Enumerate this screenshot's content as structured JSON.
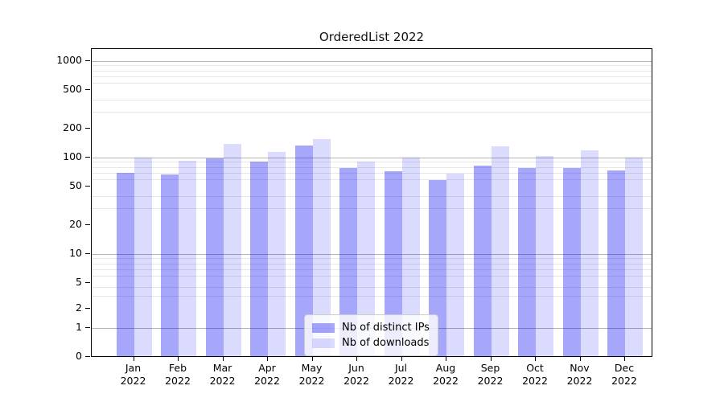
{
  "figure": {
    "title": "OrderedList 2022"
  },
  "chart_data": {
    "type": "bar",
    "title": "OrderedList 2022",
    "categories": [
      "Jan",
      "Feb",
      "Mar",
      "Apr",
      "May",
      "Jun",
      "Jul",
      "Aug",
      "Sep",
      "Oct",
      "Nov",
      "Dec"
    ],
    "x_year_suffix": "2022",
    "series": [
      {
        "name": "Nb of distinct IPs",
        "color": "#0000f059",
        "values": [
          70,
          67,
          98,
          91,
          133,
          78,
          72,
          58,
          82,
          78,
          78,
          74
        ]
      },
      {
        "name": "Nb of downloads",
        "color": "#0000f024",
        "values": [
          100,
          93,
          139,
          114,
          155,
          90,
          100,
          68,
          131,
          104,
          119,
          100
        ]
      }
    ],
    "yscale": "symlog",
    "ylim": [
      0,
      1300
    ],
    "yticks": [
      0,
      1,
      2,
      5,
      10,
      20,
      50,
      100,
      200,
      500,
      1000
    ],
    "minor_gridline_values": [
      3,
      4,
      6,
      7,
      8,
      9,
      30,
      40,
      60,
      70,
      80,
      90,
      300,
      400,
      600,
      700,
      800,
      900
    ],
    "major_gridline_values": [
      1,
      10,
      100,
      1000
    ],
    "grid": "on",
    "legend_position": "lower-center",
    "colors": {
      "axis": "#000000",
      "grid_major": "#b4b4b4",
      "grid_minor": "#e7e7e7",
      "background": "#ffffff",
      "ips_bar_solid": "#a6a6fa",
      "downloads_bar_solid": "#dbdbfd"
    }
  }
}
